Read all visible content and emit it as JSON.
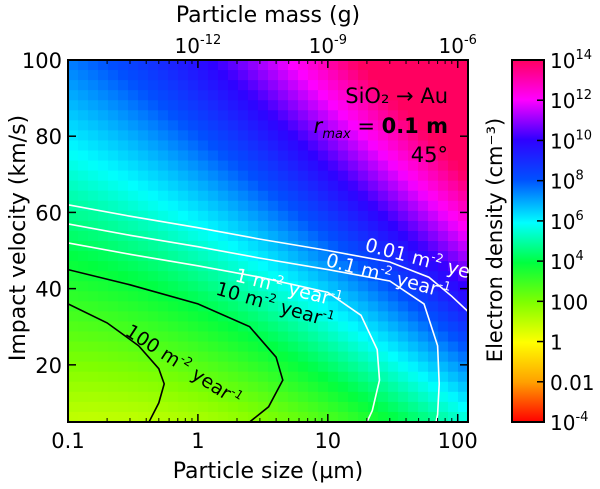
{
  "chart_data": {
    "type": "heatmap",
    "xlabel": "Particle size (µm)",
    "ylabel": "Impact velocity (km/s)",
    "top_axis_label": "Particle mass (g)",
    "colorbar_label": "Electron density (cm⁻³)",
    "annotation": {
      "line1": "SiO₂ → Au",
      "line2_prefix": "r",
      "line2_sub": "max",
      "line2_mid": " = ",
      "line2_bold": "0.1 m",
      "line3": "45°"
    },
    "x_scale": "log",
    "xlim": [
      0.1,
      120
    ],
    "ylim": [
      5,
      100
    ],
    "x_ticks": [
      {
        "value": 0.1,
        "label": "0.1"
      },
      {
        "value": 1,
        "label": "1"
      },
      {
        "value": 10,
        "label": "10"
      },
      {
        "value": 100,
        "label": "100"
      }
    ],
    "y_ticks": [
      {
        "value": 20,
        "label": "20"
      },
      {
        "value": 40,
        "label": "40"
      },
      {
        "value": 60,
        "label": "60"
      },
      {
        "value": 80,
        "label": "80"
      },
      {
        "value": 100,
        "label": "100"
      }
    ],
    "top_ticks": [
      {
        "size_um": 1.0,
        "base": "10",
        "exp": "-12"
      },
      {
        "size_um": 10,
        "base": "10",
        "exp": "-9"
      },
      {
        "size_um": 100,
        "base": "10",
        "exp": "-6"
      }
    ],
    "colorbar": {
      "log10_range": [
        -4,
        14
      ],
      "ticks": [
        {
          "log10": 14,
          "base": "10",
          "exp": "14"
        },
        {
          "log10": 12,
          "base": "10",
          "exp": "12"
        },
        {
          "log10": 10,
          "base": "10",
          "exp": "10"
        },
        {
          "log10": 8,
          "base": "10",
          "exp": "8"
        },
        {
          "log10": 6,
          "base": "10",
          "exp": "6"
        },
        {
          "log10": 4,
          "base": "10",
          "exp": "4"
        },
        {
          "log10": 2,
          "base": "",
          "exp": "",
          "label": "100"
        },
        {
          "log10": 0,
          "base": "",
          "exp": "",
          "label": "1"
        },
        {
          "log10": -2,
          "base": "",
          "exp": "",
          "label": "0.01"
        },
        {
          "log10": -4,
          "base": "10",
          "exp": "-4"
        }
      ]
    },
    "contours": [
      {
        "label_value": "100 m",
        "label_exp": "-2",
        "label_unit": " year",
        "label_unit_exp": "-1",
        "color": "#000000",
        "points": [
          [
            0.1,
            36
          ],
          [
            0.2,
            31
          ],
          [
            0.35,
            25
          ],
          [
            0.5,
            19
          ],
          [
            0.55,
            15
          ],
          [
            0.5,
            10
          ],
          [
            0.42,
            5
          ]
        ]
      },
      {
        "label_value": "10 m",
        "label_exp": "-2",
        "label_unit": " year",
        "label_unit_exp": "-1",
        "color": "#000000",
        "points": [
          [
            0.1,
            45
          ],
          [
            0.3,
            41
          ],
          [
            1.0,
            36
          ],
          [
            2.5,
            30
          ],
          [
            4,
            22
          ],
          [
            4.5,
            16
          ],
          [
            3.5,
            9
          ],
          [
            2.5,
            5
          ]
        ]
      },
      {
        "label_value": "1 m",
        "label_exp": "-2",
        "label_unit": " year",
        "label_unit_exp": "-1",
        "color": "#ffffff",
        "points": [
          [
            0.1,
            52
          ],
          [
            0.3,
            49
          ],
          [
            1,
            46
          ],
          [
            3,
            43
          ],
          [
            10,
            39
          ],
          [
            18,
            33
          ],
          [
            24,
            24
          ],
          [
            25,
            16
          ],
          [
            22,
            8
          ],
          [
            20,
            5
          ]
        ]
      },
      {
        "label_value": "0.1 m",
        "label_exp": "-2",
        "label_unit": " year",
        "label_unit_exp": "-1",
        "color": "#ffffff",
        "points": [
          [
            0.1,
            57
          ],
          [
            0.3,
            54
          ],
          [
            1,
            51
          ],
          [
            3,
            48
          ],
          [
            10,
            45
          ],
          [
            30,
            42
          ],
          [
            55,
            36
          ],
          [
            70,
            25
          ],
          [
            72,
            15
          ],
          [
            70,
            7
          ],
          [
            68,
            5
          ]
        ]
      },
      {
        "label_value": "0.01 m",
        "label_exp": "-2",
        "label_unit": " year",
        "label_unit_exp": "-1",
        "color": "#ffffff",
        "points": [
          [
            0.1,
            62
          ],
          [
            0.3,
            59
          ],
          [
            1,
            56
          ],
          [
            3,
            53
          ],
          [
            10,
            50
          ],
          [
            30,
            47
          ],
          [
            60,
            43
          ],
          [
            90,
            38
          ],
          [
            120,
            34
          ]
        ]
      }
    ]
  }
}
